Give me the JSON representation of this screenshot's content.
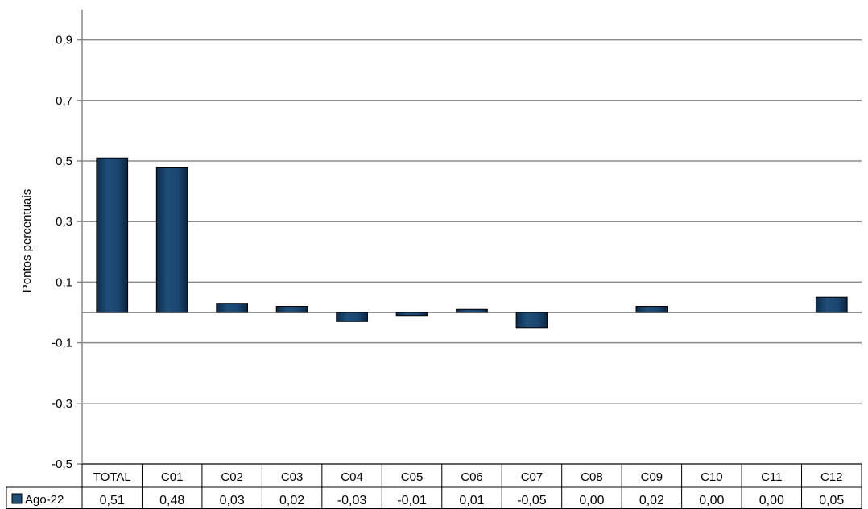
{
  "chart_data": {
    "type": "bar",
    "ylabel": "Pontos percentuais",
    "ylim": [
      -0.5,
      1.0
    ],
    "yticks": [
      "0,9",
      "0,7",
      "0,5",
      "0,3",
      "0,1",
      "-0,1",
      "-0,3",
      "-0,5"
    ],
    "ytick_values": [
      0.9,
      0.7,
      0.5,
      0.3,
      0.1,
      -0.1,
      -0.3,
      -0.5
    ],
    "grid": true,
    "categories": [
      "TOTAL",
      "C01",
      "C02",
      "C03",
      "C04",
      "C05",
      "C06",
      "C07",
      "C08",
      "C09",
      "C10",
      "C11",
      "C12"
    ],
    "series": [
      {
        "name": "Ago-22",
        "color": "#1f4e79",
        "values": [
          0.51,
          0.48,
          0.03,
          0.02,
          -0.03,
          -0.01,
          0.01,
          -0.05,
          0.0,
          0.02,
          0.0,
          0.0,
          0.05
        ],
        "labels": [
          "0,51",
          "0,48",
          "0,03",
          "0,02",
          "-0,03",
          "-0,01",
          "0,01",
          "-0,05",
          "0,00",
          "0,02",
          "0,00",
          "0,00",
          "0,05"
        ]
      }
    ],
    "data_table": true
  }
}
